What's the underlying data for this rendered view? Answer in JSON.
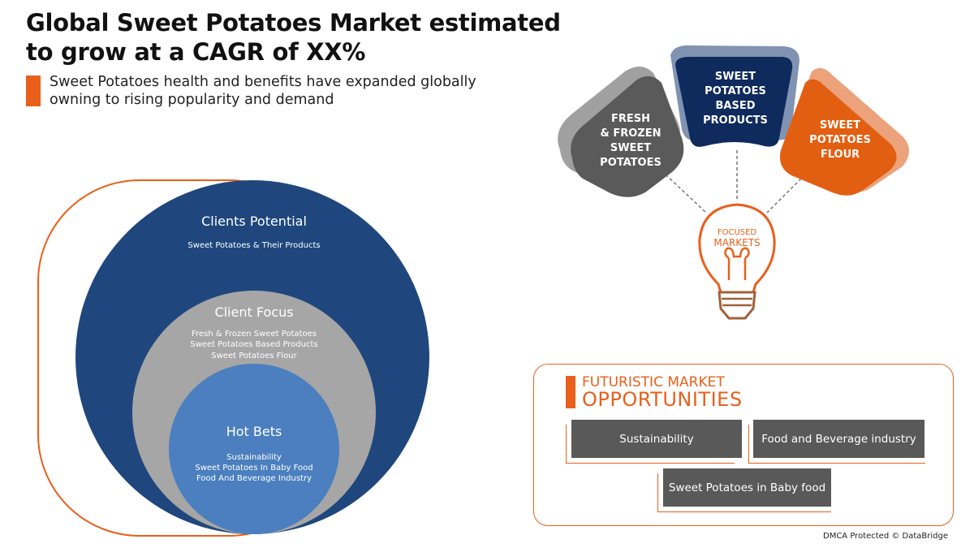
{
  "header": {
    "title_line1": "Global Sweet Potatoes Market estimated",
    "title_line2": "to grow at a CAGR of XX%",
    "subtitle_line1": "Sweet Potatoes health and benefits have expanded globally",
    "subtitle_line2": "owning to rising popularity and demand"
  },
  "circles": {
    "outer": {
      "title": "Clients Potential",
      "items": [
        "Sweet Potatoes & Their Products"
      ]
    },
    "middle": {
      "title": "Client Focus",
      "items": [
        "Fresh & Frozen Sweet Potatoes",
        "Sweet Potatoes Based Products",
        "Sweet Potatoes Flour"
      ]
    },
    "inner": {
      "title": "Hot Bets",
      "items": [
        "Sustainability",
        "Sweet Potatoes In Baby Food",
        "Food And Beverage Industry"
      ]
    }
  },
  "focused_markets": {
    "bulb_line1": "FOCUSED",
    "bulb_line2": "MARKETS",
    "petals": [
      {
        "lines": [
          "FRESH",
          "& FROZEN",
          "SWEET",
          "POTATOES"
        ],
        "color": "#5a5a5a"
      },
      {
        "lines": [
          "SWEET",
          "POTATOES",
          "BASED",
          "PRODUCTS"
        ],
        "color": "#0f2a5c"
      },
      {
        "lines": [
          "SWEET",
          "POTATOES",
          "FLOUR"
        ],
        "color": "#e25f12"
      }
    ]
  },
  "opportunities": {
    "heading_line1": "FUTURISTIC MARKET",
    "heading_line2": "OPPORTUNITIES",
    "cards": [
      "Sustainability",
      "Food and Beverage industry",
      "Sweet Potatoes in Baby food"
    ]
  },
  "footer": "DMCA Protected © DataBridge",
  "colors": {
    "accent": "#e8601c",
    "navy": "#1f477d",
    "gray": "#a6a6a6",
    "blue": "#4b7fbf",
    "card": "#595959"
  }
}
